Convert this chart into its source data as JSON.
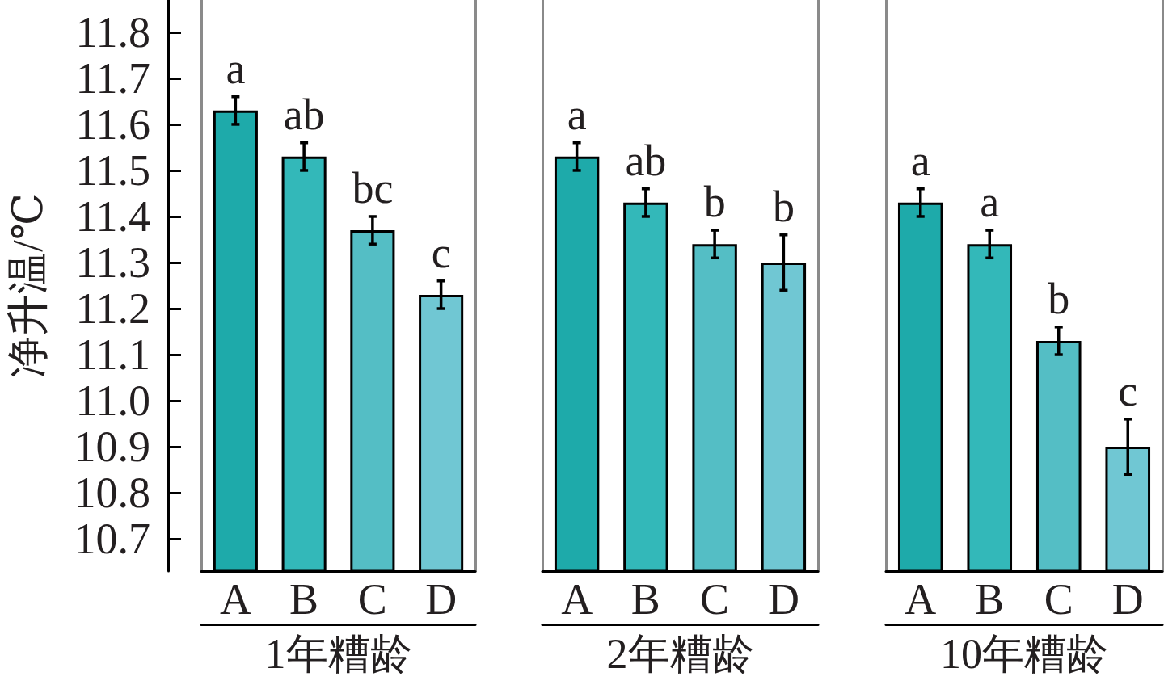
{
  "chart_data": [
    {
      "type": "bar",
      "categories": [
        "A",
        "B",
        "C",
        "D"
      ],
      "values": [
        11.63,
        11.53,
        11.37,
        11.23
      ],
      "errors": [
        0.03,
        0.03,
        0.03,
        0.03
      ],
      "colors": [
        "#1eaaaa",
        "#33b8b9",
        "#54bec5",
        "#70c7d3"
      ],
      "ylim": [
        10.63,
        11.87
      ],
      "yticks": [
        10.7,
        10.8,
        10.9,
        {
          "value": 11,
          "label": "11.0"
        },
        11.1,
        11.2,
        11.3,
        11.4,
        11.5,
        11.6,
        11.7,
        11.8
      ],
      "ylabel": "净升温/℃",
      "xlabel": "1年糟龄",
      "annotations": [
        {
          "text": "a",
          "x": "A",
          "y": 11.63
        },
        {
          "text": "ab",
          "x": "B",
          "y": 11.53
        },
        {
          "text": "bc",
          "x": "C",
          "y": 11.37
        },
        {
          "text": "c",
          "x": "D",
          "y": 11.23
        }
      ]
    },
    {
      "type": "bar",
      "categories": [
        "A",
        "B",
        "C",
        "D"
      ],
      "values": [
        11.53,
        11.43,
        11.34,
        11.3
      ],
      "errors": [
        0.03,
        0.03,
        0.03,
        0.06
      ],
      "colors": [
        "#1eaaaa",
        "#33b8b9",
        "#54bec5",
        "#70c7d3"
      ],
      "ylim": [
        10.63,
        11.87
      ],
      "tick_labels": "x",
      "xlabel": "2年糟龄",
      "annotations": [
        {
          "text": "a",
          "x": "A",
          "y": 11.53
        },
        {
          "text": "ab",
          "x": "B",
          "y": 11.43
        },
        {
          "text": "b",
          "x": "C",
          "y": 11.34
        },
        {
          "text": "b",
          "x": "D",
          "y": 11.3
        }
      ]
    },
    {
      "type": "bar",
      "categories": [
        "A",
        "B",
        "C",
        "D"
      ],
      "values": [
        11.43,
        11.34,
        11.13,
        10.9
      ],
      "errors": [
        0.03,
        0.03,
        0.03,
        0.06
      ],
      "colors": [
        "#1eaaaa",
        "#33b8b9",
        "#54bec5",
        "#70c7d3"
      ],
      "ylim": [
        10.63,
        11.87
      ],
      "tick_labels": "x",
      "xlabel": "10年糟龄",
      "annotations": [
        {
          "text": "a",
          "x": "A",
          "y": 11.43
        },
        {
          "text": "a",
          "x": "B",
          "y": 11.34
        },
        {
          "text": "b",
          "x": "C",
          "y": 11.13
        },
        {
          "text": "c",
          "x": "D",
          "y": 10.9
        }
      ]
    }
  ]
}
